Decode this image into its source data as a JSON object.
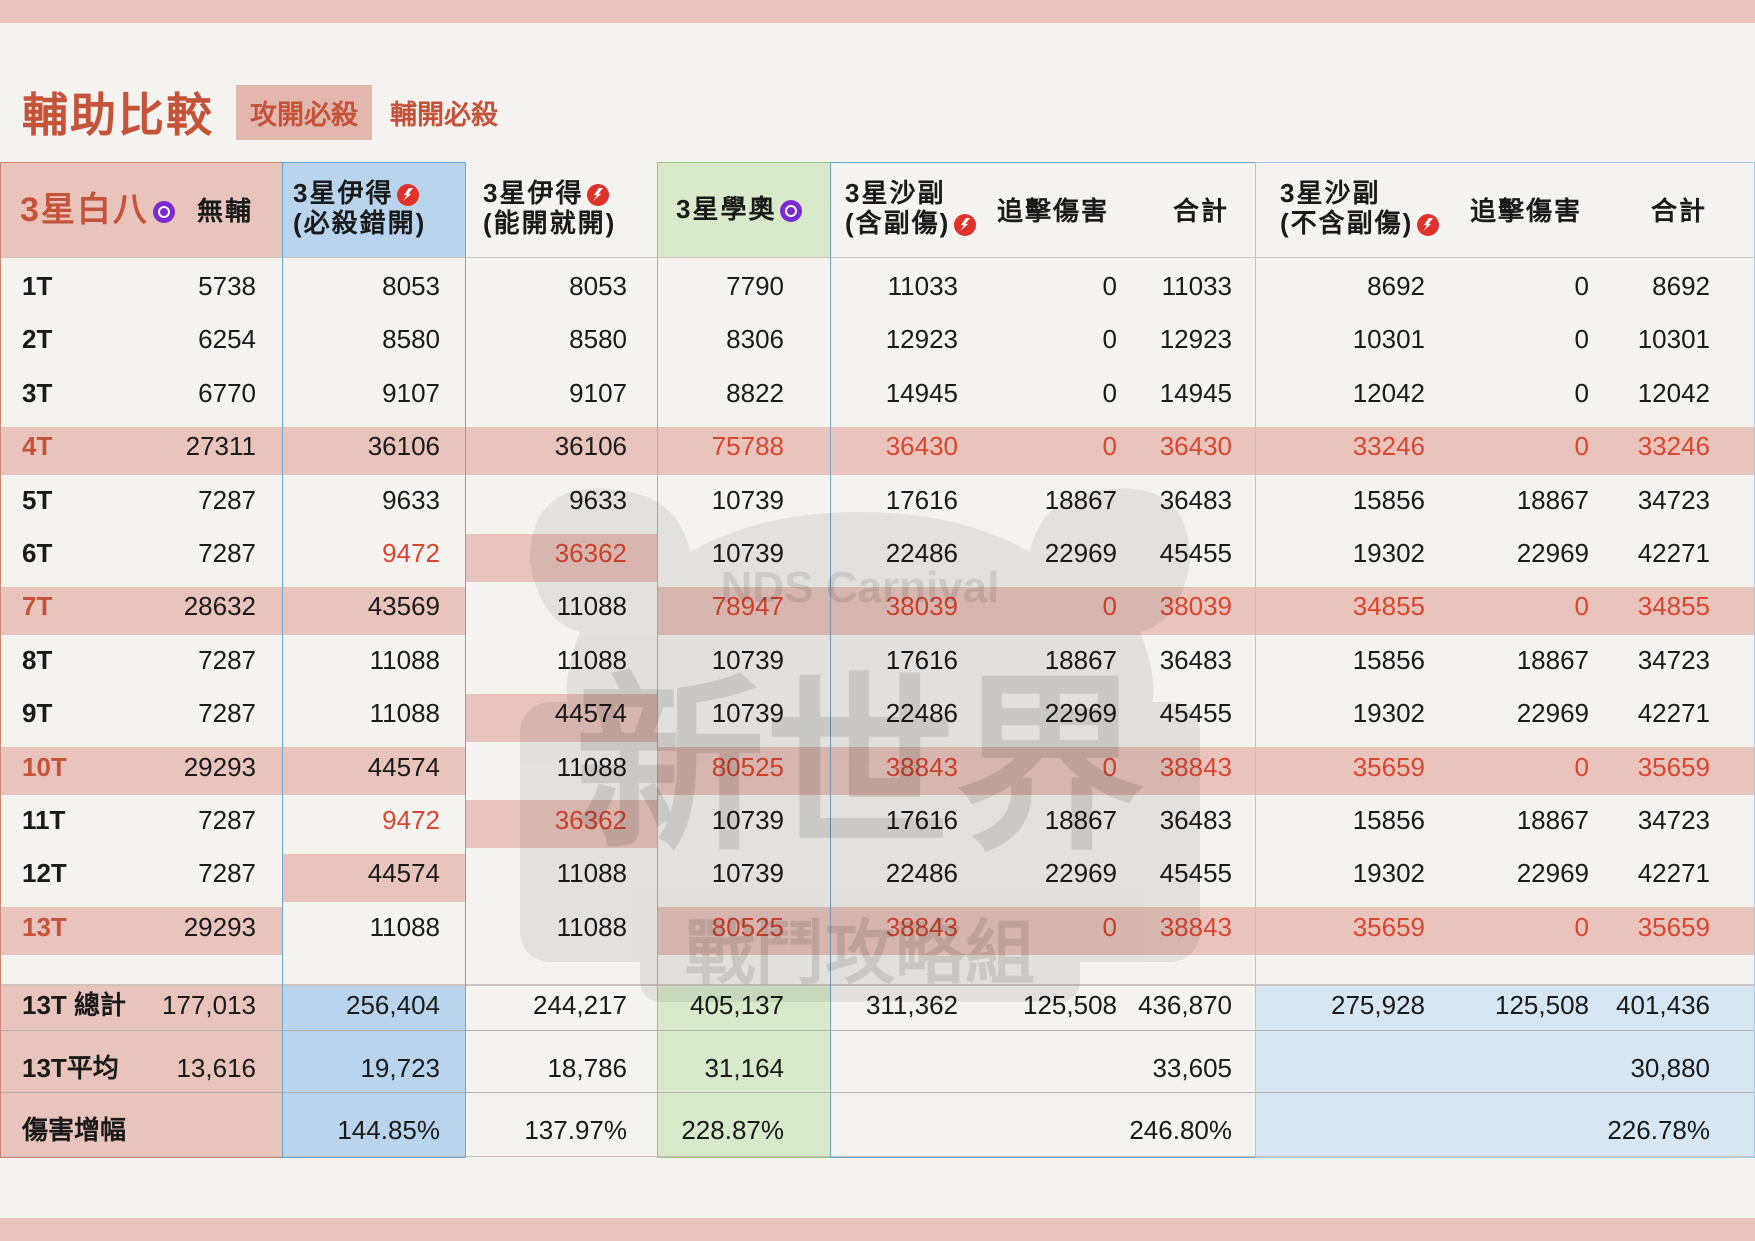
{
  "title": "輔助比較",
  "tabs": [
    {
      "label": "攻開必殺",
      "active": false
    },
    {
      "label": "輔開必殺",
      "active": true
    }
  ],
  "headers": {
    "bai": {
      "line1": "3星白八",
      "line2": "",
      "icon": "purple-swirl-icon"
    },
    "wufu": "無輔",
    "yide_crit": {
      "line1": "3星伊得",
      "line2": "(必殺錯開)",
      "icon": "red-lightning-icon"
    },
    "yide_open": {
      "line1": "3星伊得",
      "line2": "(能開就開)",
      "icon": "red-lightning-icon"
    },
    "xueao": {
      "line1": "3星學奧",
      "line2": "",
      "icon": "purple-swirl-icon"
    },
    "shafu_inc": {
      "line1": "3星沙副",
      "line2": "(含副傷)",
      "icon": "red-lightning-icon"
    },
    "chase_inc": "追擊傷害",
    "total_inc": "合計",
    "shafu_exc": {
      "line1": "3星沙副",
      "line2": "(不含副傷)",
      "icon": "red-lightning-icon"
    },
    "chase_exc": "追擊傷害",
    "total_exc": "合計"
  },
  "rows": [
    {
      "label": "1T",
      "cells": [
        "5738",
        "8053",
        "8053",
        "7790",
        "11033",
        "0",
        "11033",
        "8692",
        "0",
        "8692"
      ]
    },
    {
      "label": "2T",
      "cells": [
        "6254",
        "8580",
        "8580",
        "8306",
        "12923",
        "0",
        "12923",
        "10301",
        "0",
        "10301"
      ]
    },
    {
      "label": "3T",
      "cells": [
        "6770",
        "9107",
        "9107",
        "8822",
        "14945",
        "0",
        "14945",
        "12042",
        "0",
        "12042"
      ]
    },
    {
      "label": "4T",
      "cells": [
        "27311",
        "36106",
        "36106",
        "75788",
        "36430",
        "0",
        "36430",
        "33246",
        "0",
        "33246"
      ]
    },
    {
      "label": "5T",
      "cells": [
        "7287",
        "9633",
        "9633",
        "10739",
        "17616",
        "18867",
        "36483",
        "15856",
        "18867",
        "34723"
      ]
    },
    {
      "label": "6T",
      "cells": [
        "7287",
        "9472",
        "36362",
        "10739",
        "22486",
        "22969",
        "45455",
        "19302",
        "22969",
        "42271"
      ]
    },
    {
      "label": "7T",
      "cells": [
        "28632",
        "43569",
        "11088",
        "78947",
        "38039",
        "0",
        "38039",
        "34855",
        "0",
        "34855"
      ]
    },
    {
      "label": "8T",
      "cells": [
        "7287",
        "11088",
        "11088",
        "10739",
        "17616",
        "18867",
        "36483",
        "15856",
        "18867",
        "34723"
      ]
    },
    {
      "label": "9T",
      "cells": [
        "7287",
        "11088",
        "44574",
        "10739",
        "22486",
        "22969",
        "45455",
        "19302",
        "22969",
        "42271"
      ]
    },
    {
      "label": "10T",
      "cells": [
        "29293",
        "44574",
        "11088",
        "80525",
        "38843",
        "0",
        "38843",
        "35659",
        "0",
        "35659"
      ]
    },
    {
      "label": "11T",
      "cells": [
        "7287",
        "9472",
        "36362",
        "10739",
        "17616",
        "18867",
        "36483",
        "15856",
        "18867",
        "34723"
      ]
    },
    {
      "label": "12T",
      "cells": [
        "7287",
        "44574",
        "11088",
        "10739",
        "22486",
        "22969",
        "45455",
        "19302",
        "22969",
        "42271"
      ]
    },
    {
      "label": "13T",
      "cells": [
        "29293",
        "11088",
        "11088",
        "80525",
        "38843",
        "0",
        "38843",
        "35659",
        "0",
        "35659"
      ]
    }
  ],
  "summary": [
    {
      "label": "13T 總計",
      "cells": [
        "177,013",
        "256,404",
        "244,217",
        "405,137",
        "311,362",
        "125,508",
        "436,870",
        "275,928",
        "125,508",
        "401,436"
      ]
    },
    {
      "label": "13T平均",
      "cells": [
        "13,616",
        "19,723",
        "18,786",
        "31,164",
        "",
        "",
        "33,605",
        "",
        "",
        "30,880"
      ]
    },
    {
      "label": "傷害增幅",
      "cells": [
        "",
        "144.85%",
        "137.97%",
        "228.87%",
        "",
        "",
        "246.80%",
        "",
        "",
        "226.78%"
      ]
    }
  ],
  "colors": {
    "accent": "#c4533a",
    "highlight_row": "#e8c4bd",
    "red_value": "#d9462f",
    "blue_column": "#b9d5ee",
    "green_column": "#d9eacb",
    "light_blue_column": "#d7e6f3"
  },
  "watermark": {
    "line1": "新世界",
    "line2": "戰鬥攻略組",
    "logo_text": "NDS Carnival"
  }
}
